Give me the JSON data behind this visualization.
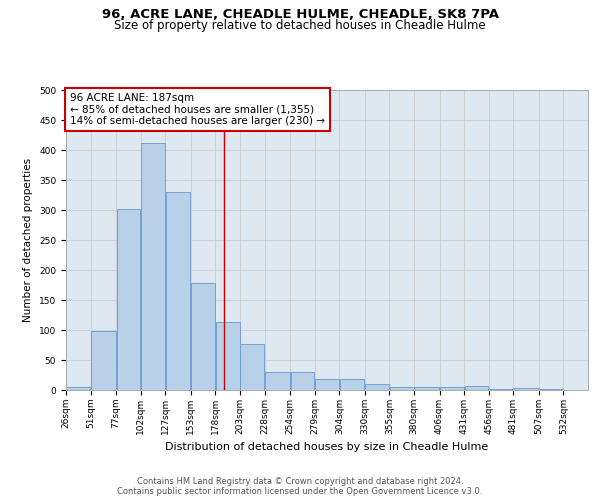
{
  "title1": "96, ACRE LANE, CHEADLE HULME, CHEADLE, SK8 7PA",
  "title2": "Size of property relative to detached houses in Cheadle Hulme",
  "xlabel": "Distribution of detached houses by size in Cheadle Hulme",
  "ylabel": "Number of detached properties",
  "bar_left_edges": [
    26,
    51,
    77,
    102,
    127,
    153,
    178,
    203,
    228,
    254,
    279,
    304,
    330,
    355,
    380,
    406,
    431,
    456,
    481,
    507
  ],
  "bar_widths": [
    25,
    26,
    25,
    25,
    26,
    25,
    25,
    25,
    26,
    25,
    25,
    26,
    25,
    25,
    26,
    25,
    25,
    25,
    26,
    25
  ],
  "bar_heights": [
    5,
    99,
    302,
    411,
    330,
    179,
    113,
    76,
    30,
    30,
    18,
    18,
    10,
    5,
    5,
    5,
    7,
    2,
    4,
    2
  ],
  "bar_color": "#b8d0e8",
  "bar_edgecolor": "#6699cc",
  "tick_labels": [
    "26sqm",
    "51sqm",
    "77sqm",
    "102sqm",
    "127sqm",
    "153sqm",
    "178sqm",
    "203sqm",
    "228sqm",
    "254sqm",
    "279sqm",
    "304sqm",
    "330sqm",
    "355sqm",
    "380sqm",
    "406sqm",
    "431sqm",
    "456sqm",
    "481sqm",
    "507sqm",
    "532sqm"
  ],
  "tick_positions": [
    26,
    51,
    77,
    102,
    127,
    153,
    178,
    203,
    228,
    254,
    279,
    304,
    330,
    355,
    380,
    406,
    431,
    456,
    481,
    507,
    532
  ],
  "vline_x": 187,
  "vline_color": "#cc0000",
  "annotation_line1": "96 ACRE LANE: 187sqm",
  "annotation_line2": "← 85% of detached houses are smaller (1,355)",
  "annotation_line3": "14% of semi-detached houses are larger (230) →",
  "annotation_box_color": "#ffffff",
  "annotation_box_edgecolor": "#cc0000",
  "ylim": [
    0,
    500
  ],
  "yticks": [
    0,
    50,
    100,
    150,
    200,
    250,
    300,
    350,
    400,
    450,
    500
  ],
  "xlim_left": 26,
  "xlim_right": 557,
  "grid_color": "#cccccc",
  "bg_color": "#dde8f0",
  "footnote1": "Contains HM Land Registry data © Crown copyright and database right 2024.",
  "footnote2": "Contains public sector information licensed under the Open Government Licence v3.0.",
  "title_fontsize": 9.5,
  "subtitle_fontsize": 8.5,
  "axis_label_fontsize": 7.5,
  "tick_fontsize": 6.5,
  "annotation_fontsize": 7.5,
  "footnote_fontsize": 6.0
}
